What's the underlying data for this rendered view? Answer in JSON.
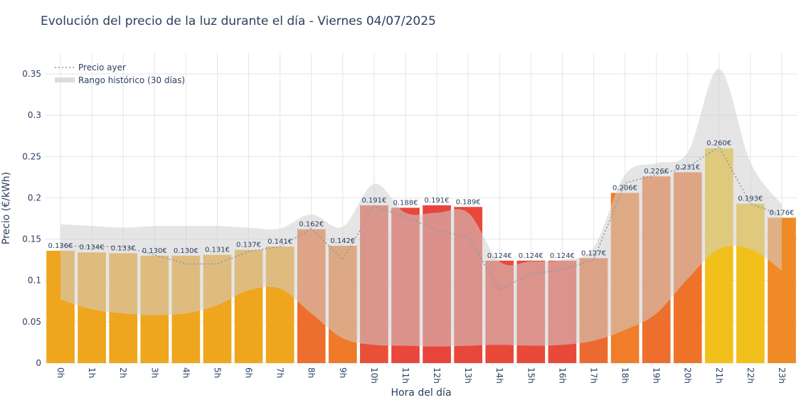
{
  "title": "Evolución del precio de la luz durante el día - Viernes 04/07/2025",
  "chart_data": {
    "type": "bar",
    "title": "Evolución del precio de la luz durante el día - Viernes 04/07/2025",
    "xlabel": "Hora del día",
    "ylabel": "Precio (€/kWh)",
    "ylim": [
      0,
      0.375
    ],
    "yticks": [
      0,
      0.05,
      0.1,
      0.15,
      0.2,
      0.25,
      0.3,
      0.35
    ],
    "ytick_labels": [
      "0",
      "0.05",
      "0.1",
      "0.15",
      "0.2",
      "0.25",
      "0.3",
      "0.35"
    ],
    "categories": [
      "0h",
      "1h",
      "2h",
      "3h",
      "4h",
      "5h",
      "6h",
      "7h",
      "8h",
      "9h",
      "10h",
      "11h",
      "12h",
      "13h",
      "14h",
      "15h",
      "16h",
      "17h",
      "18h",
      "19h",
      "20h",
      "21h",
      "22h",
      "23h"
    ],
    "values": [
      0.136,
      0.134,
      0.133,
      0.13,
      0.13,
      0.131,
      0.137,
      0.141,
      0.162,
      0.142,
      0.191,
      0.188,
      0.191,
      0.189,
      0.124,
      0.124,
      0.124,
      0.127,
      0.206,
      0.226,
      0.231,
      0.26,
      0.193,
      0.176
    ],
    "value_labels": [
      "0.136€",
      "0.134€",
      "0.133€",
      "0.130€",
      "0.130€",
      "0.131€",
      "0.137€",
      "0.141€",
      "0.162€",
      "0.142€",
      "0.191€",
      "0.188€",
      "0.191€",
      "0.189€",
      "0.124€",
      "0.124€",
      "0.124€",
      "0.127€",
      "0.206€",
      "0.226€",
      "0.231€",
      "0.260€",
      "0.193€",
      "0.176€"
    ],
    "bar_colors": [
      "#f0a51e",
      "#f0a51e",
      "#f0a51e",
      "#f0a51e",
      "#f0a51e",
      "#f0a51e",
      "#f0a51e",
      "#f0a51e",
      "#ee6f2d",
      "#ee7a2a",
      "#e8503a",
      "#e8483b",
      "#e8443b",
      "#e8473b",
      "#e84a3a",
      "#e84a3a",
      "#e84a3a",
      "#ec6a2f",
      "#ef7d29",
      "#ee6f2d",
      "#ef7229",
      "#f2c01a",
      "#f2c01a",
      "#f08a26"
    ],
    "series": [
      {
        "name": "Precio ayer",
        "style": "dotted",
        "color": "#8a9aa8",
        "values": [
          0.142,
          0.141,
          0.141,
          0.131,
          0.12,
          0.12,
          0.135,
          0.141,
          0.163,
          0.125,
          0.19,
          0.177,
          0.161,
          0.152,
          0.089,
          0.108,
          0.113,
          0.125,
          0.218,
          0.228,
          0.237,
          0.262,
          0.193,
          0.179
        ]
      },
      {
        "name": "Rango histórico (30 días)",
        "type": "band",
        "color": "#e0e0e0",
        "upper": [
          0.168,
          0.166,
          0.164,
          0.166,
          0.166,
          0.166,
          0.164,
          0.163,
          0.18,
          0.165,
          0.217,
          0.182,
          0.182,
          0.182,
          0.123,
          0.123,
          0.125,
          0.14,
          0.228,
          0.242,
          0.255,
          0.356,
          0.243,
          0.192
        ],
        "lower": [
          0.077,
          0.065,
          0.06,
          0.058,
          0.06,
          0.07,
          0.088,
          0.09,
          0.06,
          0.03,
          0.022,
          0.021,
          0.02,
          0.021,
          0.022,
          0.021,
          0.022,
          0.027,
          0.04,
          0.06,
          0.102,
          0.138,
          0.138,
          0.112
        ]
      }
    ],
    "legend": {
      "position": "top-left",
      "entries": [
        "Precio ayer",
        "Rango histórico (30 días)"
      ]
    },
    "grid": true
  },
  "colors": {
    "axis_text": "#2a3f5f",
    "grid": "#e5e5e5",
    "band": "#dcdcdc"
  }
}
